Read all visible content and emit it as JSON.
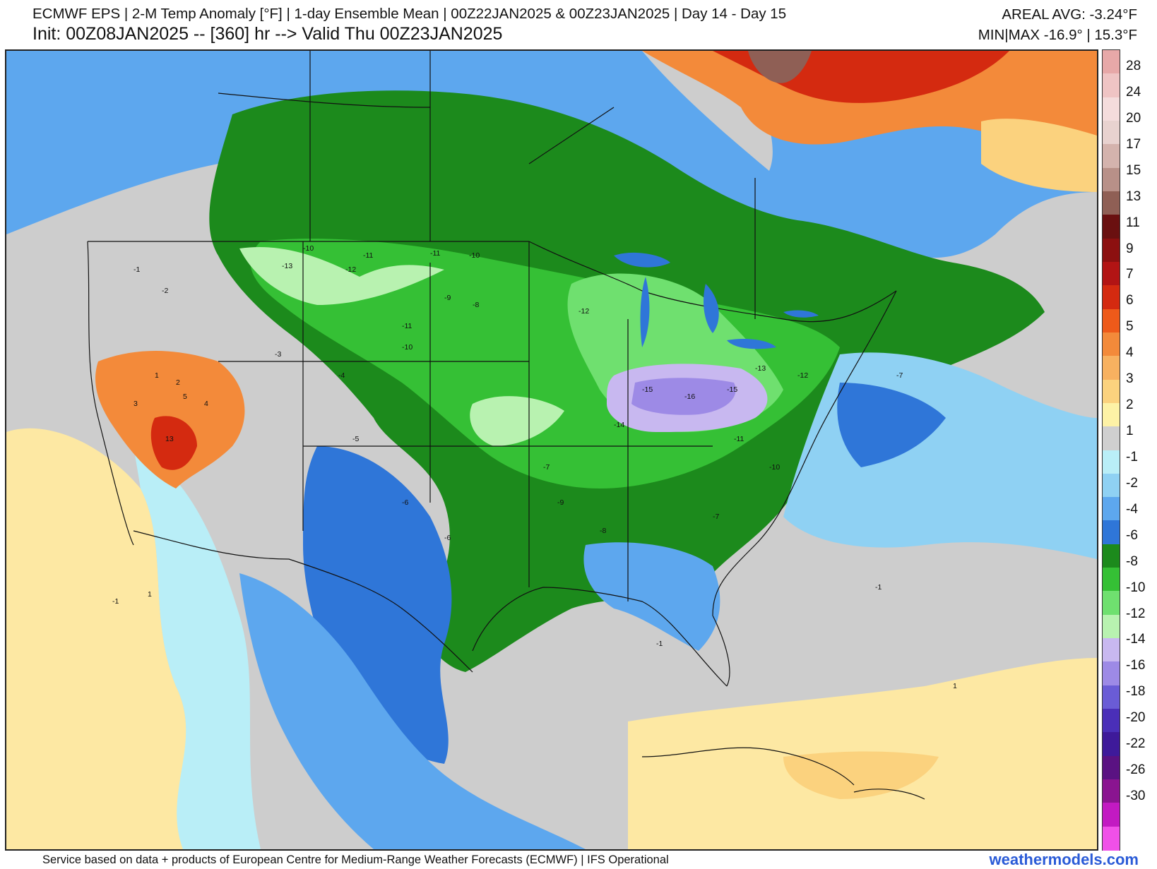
{
  "header": {
    "title_line": "ECMWF EPS | 2-M Temp Anomaly [°F] | 1-day Ensemble Mean | 00Z22JAN2025 & 00Z23JAN2025 | Day 14 - Day 15",
    "init_line": "Init: 00Z08JAN2025 -- [360] hr --> Valid Thu 00Z23JAN2025",
    "areal_avg": "AREAL AVG: -3.24°F",
    "min_max": "MIN|MAX -16.9° | 15.3°F"
  },
  "colorbar": {
    "labels": [
      "28",
      "24",
      "20",
      "17",
      "15",
      "13",
      "11",
      "9",
      "7",
      "6",
      "5",
      "4",
      "3",
      "2",
      "1",
      "-1",
      "-2",
      "-4",
      "-6",
      "-8",
      "-10",
      "-12",
      "-14",
      "-16",
      "-18",
      "-20",
      "-22",
      "-26",
      "-30"
    ],
    "colors": [
      "#e7a8a8",
      "#efc4c4",
      "#f4dcdc",
      "#e8d2cf",
      "#d4b3ad",
      "#b89088",
      "#8f5f55",
      "#6a1010",
      "#8c1010",
      "#b21414",
      "#d42a10",
      "#ee5a1a",
      "#f38a3a",
      "#f7b160",
      "#fbd27e",
      "#fdf2a6",
      "#cfcfcf",
      "#b9eef7",
      "#8fd1f3",
      "#5da7ee",
      "#2f76d8",
      "#1c8a1c",
      "#35c035",
      "#6fe06f",
      "#b8f2b0",
      "#c8b8f0",
      "#9d8ae6",
      "#6a5cd6",
      "#4a2fb8",
      "#3e1a9a",
      "#5a1282",
      "#8a1490",
      "#c21ac2",
      "#f050e8"
    ]
  },
  "map": {
    "labels": [
      "-10",
      "-11",
      "-12",
      "-13",
      "-10",
      "-11",
      "-12",
      "-11",
      "-10",
      "-9",
      "-8",
      "-7",
      "-15",
      "-16",
      "-15",
      "-14",
      "-13",
      "-12",
      "-11",
      "-10",
      "-9",
      "-8",
      "-7",
      "-6",
      "-1",
      "-2",
      "-3",
      "-4",
      "-5",
      "-6",
      "1",
      "2",
      "3",
      "4",
      "5",
      "13",
      "-1",
      "-1",
      "1",
      "1",
      "-1",
      "-7"
    ]
  },
  "footer": {
    "credit": "Service based on data + products of European Centre for Medium-Range Weather Forecasts (ECMWF) | IFS Operational",
    "brand": "weathermodels.com"
  }
}
